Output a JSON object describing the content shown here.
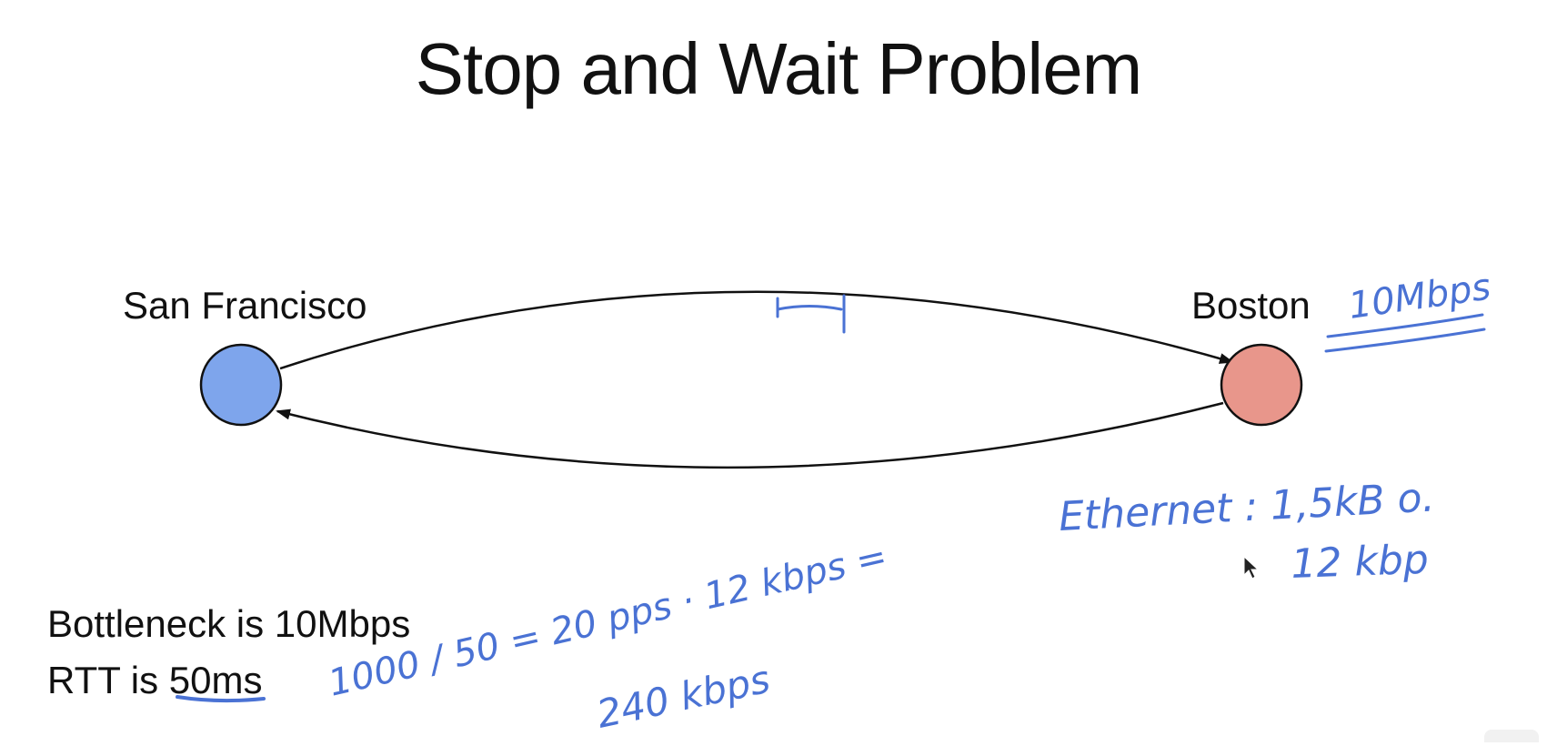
{
  "slide": {
    "title": "Stop and Wait Problem"
  },
  "nodes": {
    "sender": {
      "label": "San Francisco",
      "color": "#7ea5ec"
    },
    "receiver": {
      "label": "Boston",
      "color": "#e8968b"
    }
  },
  "facts": {
    "line1": "Bottleneck is 10Mbps",
    "line2_prefix": "RTT is ",
    "line2_value": "50ms"
  },
  "annotations": {
    "color": "#4a72d4",
    "link_rate": "10Mbps",
    "ethernet": "Ethernet : 1,5kB o.",
    "frame_bits": "12 kbp",
    "calc1": "1000 / 50 = 20 pps · 12 kbps =",
    "calc2": "240 kbps"
  },
  "cursor": {
    "icon": "pointer-cursor-icon"
  }
}
